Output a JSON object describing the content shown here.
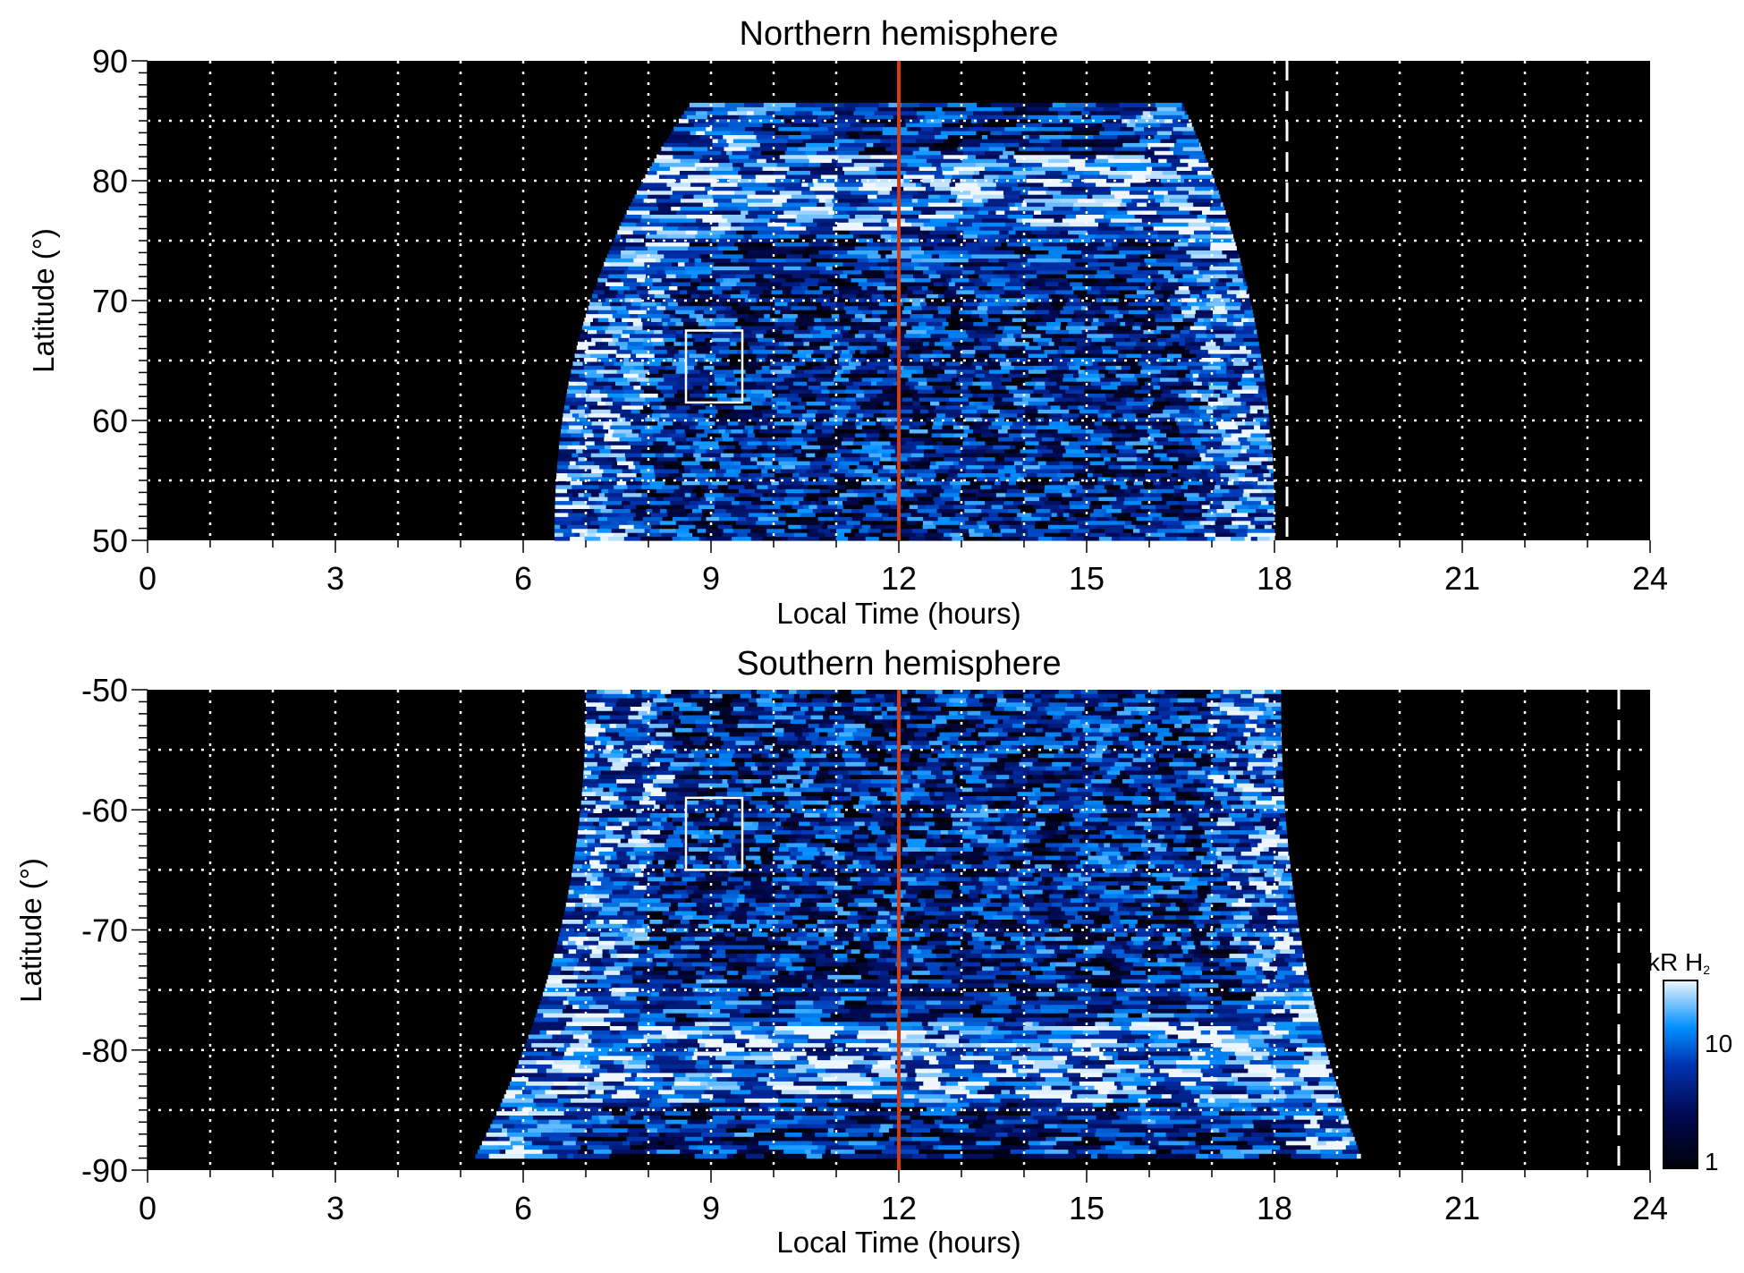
{
  "chart_data": [
    {
      "type": "heatmap",
      "title": "Northern hemisphere",
      "xlabel": "Local Time (hours)",
      "ylabel": "Latitude (°)",
      "xlim": [
        0,
        24
      ],
      "ylim": [
        50,
        90
      ],
      "xticks": [
        "0",
        "3",
        "6",
        "9",
        "12",
        "15",
        "18",
        "21",
        "24"
      ],
      "yticks": [
        "50",
        "60",
        "70",
        "80",
        "90"
      ],
      "grid": true,
      "noon_line_lt": 12,
      "dashed_line_lt": 18.2,
      "box": {
        "lt": [
          8.6,
          9.5
        ],
        "lat": [
          61.5,
          67.5
        ]
      },
      "coverage": {
        "lat_min": 50,
        "lat_max": 86.5,
        "lt_at_lat_min": [
          6.5,
          18.0
        ],
        "lt_at_lat_max": [
          8.7,
          16.5
        ]
      }
    },
    {
      "type": "heatmap",
      "title": "Southern hemisphere",
      "xlabel": "Local Time (hours)",
      "ylabel": "Latitude (°)",
      "xlim": [
        0,
        24
      ],
      "ylim": [
        -90,
        -50
      ],
      "xticks": [
        "0",
        "3",
        "6",
        "9",
        "12",
        "15",
        "18",
        "21",
        "24"
      ],
      "yticks": [
        "-50",
        "-60",
        "-70",
        "-80",
        "-90"
      ],
      "grid": true,
      "noon_line_lt": 12,
      "dashed_line_lt": 23.5,
      "box": {
        "lt": [
          8.6,
          9.5
        ],
        "lat": [
          -65,
          -59
        ]
      },
      "coverage": {
        "lat_min": -50,
        "lat_max": -89,
        "lt_at_lat_min": [
          7.0,
          18.1
        ],
        "lt_at_lat_max": [
          5.2,
          19.4
        ]
      }
    }
  ],
  "colorbar": {
    "label": "kR H",
    "label_sub": "2",
    "scale": "log",
    "range": [
      1,
      30
    ],
    "ticks": [
      "1",
      "10"
    ],
    "colors": [
      "#000008",
      "#000a55",
      "#0033b0",
      "#0090ff",
      "#eef6ff"
    ]
  },
  "colors": {
    "noon_line": "#d83a10",
    "grid": "#ffffff",
    "background": "#000000"
  }
}
